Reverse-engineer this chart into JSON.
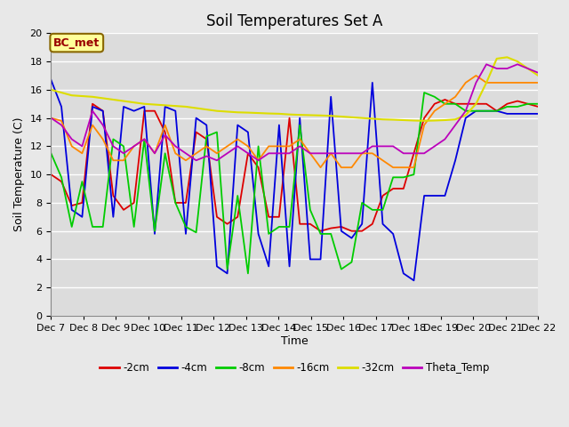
{
  "title": "Soil Temperatures Set A",
  "xlabel": "Time",
  "ylabel": "Soil Temperature (C)",
  "annotation": "BC_met",
  "ylim": [
    0,
    20
  ],
  "series_order": [
    "-2cm",
    "-4cm",
    "-8cm",
    "-16cm",
    "-32cm",
    "Theta_Temp"
  ],
  "series": {
    "-2cm": {
      "color": "#dd0000",
      "linewidth": 1.3,
      "y": [
        10.0,
        9.5,
        7.8,
        8.0,
        15.0,
        14.5,
        8.5,
        7.5,
        8.0,
        14.5,
        14.5,
        13.0,
        8.0,
        8.0,
        13.0,
        12.5,
        7.0,
        6.5,
        7.0,
        11.5,
        10.5,
        7.0,
        7.0,
        14.0,
        6.5,
        6.5,
        6.0,
        6.2,
        6.3,
        6.0,
        6.0,
        6.5,
        8.5,
        9.0,
        9.0,
        11.5,
        14.0,
        15.0,
        15.3,
        15.0,
        15.0,
        15.0,
        15.0,
        14.5,
        15.0,
        15.2,
        15.0,
        14.8
      ]
    },
    "-4cm": {
      "color": "#0000dd",
      "linewidth": 1.3,
      "y": [
        16.7,
        14.8,
        7.5,
        7.0,
        14.8,
        14.5,
        7.0,
        14.8,
        14.5,
        14.8,
        5.8,
        14.8,
        14.5,
        5.8,
        14.0,
        13.5,
        3.5,
        3.0,
        13.5,
        13.0,
        5.8,
        3.5,
        13.5,
        3.5,
        14.0,
        4.0,
        4.0,
        15.5,
        6.0,
        5.5,
        6.5,
        16.5,
        6.5,
        5.8,
        3.0,
        2.5,
        8.5,
        8.5,
        8.5,
        11.0,
        14.0,
        14.5,
        14.5,
        14.5,
        14.3,
        14.3,
        14.3,
        14.3
      ]
    },
    "-8cm": {
      "color": "#00cc00",
      "linewidth": 1.3,
      "y": [
        11.5,
        9.8,
        6.3,
        9.5,
        6.3,
        6.3,
        12.5,
        12.0,
        6.3,
        12.5,
        6.0,
        11.5,
        8.0,
        6.3,
        5.9,
        12.7,
        13.0,
        3.3,
        8.5,
        3.0,
        12.0,
        5.8,
        6.3,
        6.3,
        13.5,
        7.5,
        5.8,
        5.8,
        3.3,
        3.8,
        8.0,
        7.5,
        7.5,
        9.8,
        9.8,
        10.0,
        15.8,
        15.5,
        15.0,
        15.0,
        14.5,
        14.5,
        14.5,
        14.5,
        14.8,
        14.8,
        15.0,
        15.0
      ]
    },
    "-16cm": {
      "color": "#ff8800",
      "linewidth": 1.3,
      "y": [
        14.0,
        13.8,
        12.0,
        11.5,
        13.5,
        12.5,
        11.0,
        11.0,
        12.0,
        12.5,
        11.5,
        13.5,
        11.5,
        11.0,
        11.5,
        12.0,
        11.5,
        12.0,
        12.5,
        12.0,
        11.0,
        12.0,
        12.0,
        12.0,
        12.5,
        11.5,
        10.5,
        11.5,
        10.5,
        10.5,
        11.5,
        11.5,
        11.0,
        10.5,
        10.5,
        10.5,
        13.5,
        14.5,
        15.0,
        15.5,
        16.5,
        17.0,
        16.5,
        16.5,
        16.5,
        16.5,
        16.5,
        16.5
      ]
    },
    "-32cm": {
      "color": "#dddd00",
      "linewidth": 1.5,
      "y": [
        16.0,
        15.8,
        15.6,
        15.55,
        15.5,
        15.4,
        15.3,
        15.2,
        15.1,
        15.0,
        14.95,
        14.9,
        14.85,
        14.8,
        14.7,
        14.6,
        14.5,
        14.45,
        14.4,
        14.38,
        14.35,
        14.32,
        14.3,
        14.25,
        14.22,
        14.2,
        14.18,
        14.15,
        14.1,
        14.05,
        14.0,
        13.95,
        13.9,
        13.88,
        13.85,
        13.82,
        13.8,
        13.82,
        13.85,
        13.9,
        14.2,
        15.0,
        16.5,
        18.2,
        18.3,
        18.0,
        17.5,
        17.0
      ]
    },
    "Theta_Temp": {
      "color": "#bb00bb",
      "linewidth": 1.3,
      "y": [
        14.0,
        13.5,
        12.5,
        12.0,
        14.5,
        13.5,
        12.0,
        11.5,
        12.0,
        12.5,
        11.5,
        12.8,
        12.0,
        11.5,
        11.0,
        11.3,
        11.0,
        11.5,
        12.0,
        11.5,
        11.0,
        11.5,
        11.5,
        11.5,
        12.0,
        11.5,
        11.5,
        11.5,
        11.5,
        11.5,
        11.5,
        12.0,
        12.0,
        12.0,
        11.5,
        11.5,
        11.5,
        12.0,
        12.5,
        13.5,
        14.5,
        16.5,
        17.8,
        17.5,
        17.5,
        17.8,
        17.5,
        17.2
      ]
    }
  },
  "x_tick_labels": [
    "Dec 7",
    "Dec 8",
    "Dec 9",
    "Dec 10",
    "Dec 11",
    "Dec 12",
    "Dec 13",
    "Dec 14",
    "Dec 15",
    "Dec 16",
    "Dec 17",
    "Dec 18",
    "Dec 19",
    "Dec 20",
    "Dec 21",
    "Dec 22"
  ],
  "background_color": "#e8e8e8",
  "plot_bg_color": "#dcdcdc",
  "grid_color": "#ffffff",
  "title_fontsize": 12,
  "axis_label_fontsize": 9,
  "tick_fontsize": 8
}
